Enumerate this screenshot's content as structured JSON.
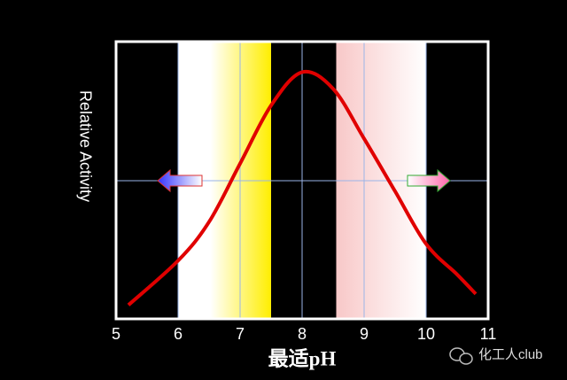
{
  "chart_data": {
    "type": "line",
    "x_label": "最适pH",
    "y_label": "Relative Activity",
    "watermark": "化工人club",
    "x": [
      5.2,
      6,
      6.5,
      7,
      7.5,
      8,
      8.5,
      9,
      9.5,
      10,
      10.5,
      10.8
    ],
    "values": [
      0.05,
      0.21,
      0.35,
      0.56,
      0.77,
      0.89,
      0.83,
      0.65,
      0.46,
      0.27,
      0.16,
      0.09
    ],
    "color": "#e00000",
    "xlim": [
      5,
      11
    ],
    "xticks": [
      5,
      6,
      7,
      8,
      9,
      10,
      11
    ],
    "ylim": [
      0,
      1
    ],
    "grid": true,
    "bands": [
      {
        "from": 6,
        "to": 7.5,
        "color": "#ffee00"
      },
      {
        "from": 8.55,
        "to": 10,
        "color": "#f8c8c8"
      }
    ]
  }
}
